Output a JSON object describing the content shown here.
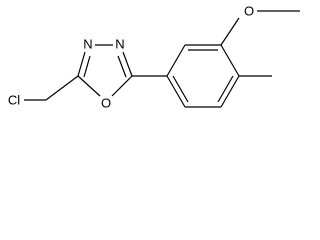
{
  "atoms": [
    {
      "label": "Cl"
    },
    {
      "label": "N"
    },
    {
      "label": "N"
    },
    {
      "label": "O"
    },
    {
      "label": "O"
    }
  ]
}
